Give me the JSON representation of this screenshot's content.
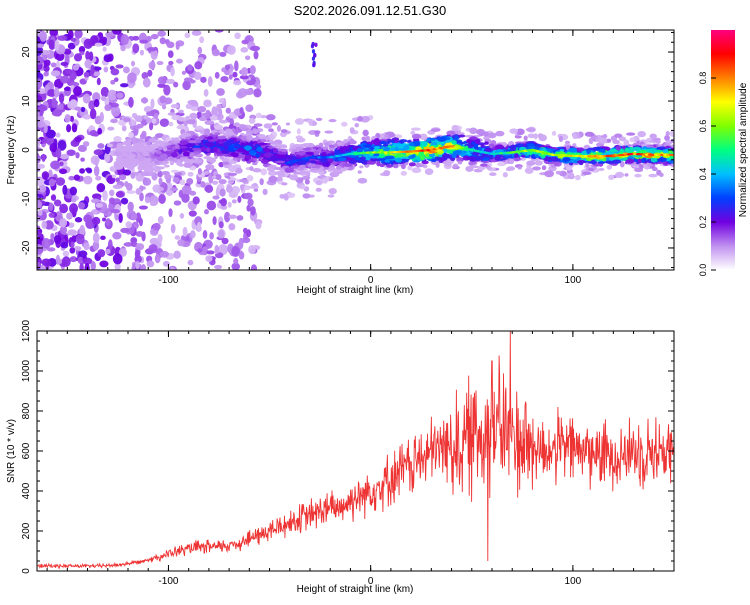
{
  "title": "S202.2026.091.12.51.G30",
  "chart_data": [
    {
      "type": "heatmap",
      "title": "S202.2026.091.12.51.G30",
      "xlabel": "Height of straight line (km)",
      "ylabel": "Frequency (Hz)",
      "xlim": [
        -165,
        150
      ],
      "ylim": [
        -24.5,
        24.5
      ],
      "xticks": [
        -100,
        0,
        100
      ],
      "yticks": [
        -20,
        -10,
        0,
        10,
        20
      ],
      "grid": false,
      "ridge": {
        "x": [
          -120,
          -110,
          -100,
          -90,
          -80,
          -70,
          -60,
          -50,
          -40,
          -30,
          -20,
          -10,
          0,
          10,
          20,
          30,
          40,
          50,
          60,
          70,
          80,
          90,
          100,
          110,
          120,
          130,
          140,
          150
        ],
        "frequency": [
          -1,
          -1.5,
          -0.5,
          0.5,
          1,
          0.8,
          0,
          -0.8,
          -2.5,
          -1.5,
          -1.5,
          -0.8,
          -0.5,
          -0.5,
          -0.3,
          0,
          0.8,
          0,
          -0.8,
          -0.5,
          0,
          -1,
          -1.2,
          -1.3,
          -1.2,
          -0.8,
          -1,
          -1
        ],
        "amplitude": [
          0.1,
          0.15,
          0.2,
          0.3,
          0.35,
          0.35,
          0.4,
          0.35,
          0.3,
          0.3,
          0.35,
          0.45,
          0.6,
          0.7,
          0.8,
          0.9,
          0.75,
          0.5,
          0.45,
          0.55,
          0.65,
          0.7,
          0.7,
          0.8,
          0.85,
          0.85,
          0.8,
          0.75
        ]
      },
      "colorbar": {
        "label": "Normalized spectral amplitude",
        "range": [
          0,
          1
        ],
        "ticks": [
          "0.0",
          "0.2",
          "0.4",
          "0.6",
          "0.8"
        ],
        "colors": [
          "#ffffff",
          "#c090f0",
          "#7000e0",
          "#0040ff",
          "#00c0ff",
          "#00ff80",
          "#80ff00",
          "#ffff00",
          "#ff8000",
          "#ff0000",
          "#ff0080"
        ]
      }
    },
    {
      "type": "line",
      "xlabel": "Height of straight line (km)",
      "ylabel": "SNR (10 * v/v)",
      "xlim": [
        -165,
        150
      ],
      "ylim": [
        0,
        1200
      ],
      "xticks": [
        -100,
        0,
        100
      ],
      "yticks": [
        0,
        200,
        400,
        600,
        800,
        1000,
        1200
      ],
      "grid": false,
      "series": [
        {
          "name": "SNR",
          "color": "#ee3333",
          "x": [
            -165,
            -155,
            -145,
            -135,
            -125,
            -115,
            -105,
            -95,
            -85,
            -75,
            -65,
            -55,
            -45,
            -35,
            -25,
            -15,
            -5,
            5,
            15,
            25,
            35,
            45,
            55,
            65,
            75,
            85,
            95,
            105,
            115,
            125,
            135,
            145,
            150
          ],
          "y": [
            25,
            25,
            25,
            25,
            30,
            45,
            70,
            100,
            120,
            120,
            140,
            180,
            220,
            260,
            300,
            320,
            380,
            430,
            500,
            560,
            620,
            640,
            700,
            720,
            650,
            600,
            620,
            600,
            580,
            590,
            600,
            600,
            590
          ],
          "peaks": [
            {
              "x": 60,
              "y": 1050
            },
            {
              "x": 69,
              "y": 1200
            },
            {
              "x": 58,
              "y": 50
            }
          ]
        }
      ]
    }
  ]
}
